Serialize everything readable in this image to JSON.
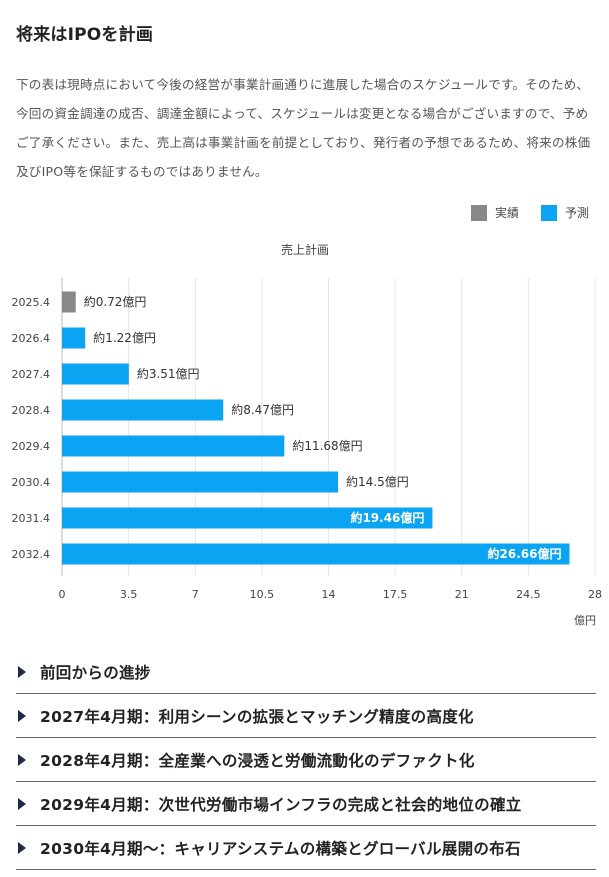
{
  "title": "将来はIPOを計画",
  "description": "下の表は現時点において今後の経営が事業計画通りに進展した場合のスケジュールです。そのため、今回の資金調達の成否、調達金額によって、スケジュールは変更となる場合がございますので、予めご了承ください。また、売上高は事業計画を前提としており、発行者の予想であるため、将来の株価及びIPO等を保証するものではありません。",
  "legend": [
    {
      "label": "実績",
      "color": "#888888"
    },
    {
      "label": "予測",
      "color": "#0aa4f2"
    }
  ],
  "chart_data": {
    "type": "bar",
    "orientation": "horizontal",
    "title": "売上計画",
    "categories": [
      "2025.4",
      "2026.4",
      "2027.4",
      "2028.4",
      "2029.4",
      "2030.4",
      "2031.4",
      "2032.4"
    ],
    "values": [
      0.72,
      1.22,
      3.51,
      8.47,
      11.68,
      14.5,
      19.46,
      26.66
    ],
    "labels": [
      "約0.72億円",
      "約1.22億円",
      "約3.51億円",
      "約8.47億円",
      "約11.68億円",
      "約14.5億円",
      "約19.46億円",
      "約26.66億円"
    ],
    "kinds": [
      "実績",
      "予測",
      "予測",
      "予測",
      "予測",
      "予測",
      "予測",
      "予測"
    ],
    "xticks": [
      "0",
      "3.5",
      "7",
      "10.5",
      "14",
      "17.5",
      "21",
      "24.5",
      "28"
    ],
    "xlim": [
      0,
      28
    ],
    "xlabel": "億円",
    "colors": {
      "actual": "#888888",
      "forecast": "#0aa4f2"
    }
  },
  "sections": [
    {
      "label": "前回からの進捗"
    },
    {
      "label": "2027年4月期：利用シーンの拡張とマッチング精度の高度化"
    },
    {
      "label": "2028年4月期：全産業への浸透と労働流動化のデファクト化"
    },
    {
      "label": "2029年4月期：次世代労働市場インフラの完成と社会的地位の確立"
    },
    {
      "label": "2030年4月期～：キャリアシステムの構築とグローバル展開の布石"
    }
  ]
}
